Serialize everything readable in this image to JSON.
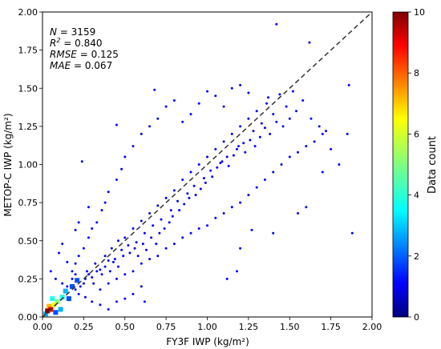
{
  "chart_data": {
    "type": "scatter",
    "xlabel": "FY3F IWP (kg/m²)",
    "ylabel": "METOP-C IWP (kg/m²)",
    "xlim": [
      0,
      2
    ],
    "ylim": [
      0,
      2
    ],
    "x_ticks": [
      "0.00",
      "0.25",
      "0.50",
      "0.75",
      "1.00",
      "1.25",
      "1.50",
      "1.75",
      "2.00"
    ],
    "y_ticks": [
      "0.00",
      "0.25",
      "0.50",
      "0.75",
      "1.00",
      "1.25",
      "1.50",
      "1.75",
      "2.00"
    ],
    "reference_line": {
      "style": "dashed",
      "color": "#333333",
      "from": [
        0,
        0
      ],
      "to": [
        2,
        2
      ]
    },
    "point_color": "#0000ff",
    "stats": {
      "n_label": "N",
      "n_value": "3159",
      "r2_label": "R",
      "r2_sup": "2",
      "r2_value": "0.840",
      "rmse_label": "RMSE",
      "rmse_value": "0.125",
      "mae_label": "MAE",
      "mae_value": "0.067"
    },
    "colorbar": {
      "label": "Data count",
      "range": [
        0,
        10
      ],
      "ticks": [
        "0",
        "2",
        "4",
        "6",
        "8",
        "10"
      ],
      "colormap": "jet"
    },
    "dense_cells": [
      {
        "x": 0.03,
        "y": 0.04,
        "count": 10
      },
      {
        "x": 0.05,
        "y": 0.05,
        "count": 9
      },
      {
        "x": 0.04,
        "y": 0.07,
        "count": 7
      },
      {
        "x": 0.07,
        "y": 0.08,
        "count": 6
      },
      {
        "x": 0.09,
        "y": 0.1,
        "count": 5
      },
      {
        "x": 0.06,
        "y": 0.12,
        "count": 4
      },
      {
        "x": 0.12,
        "y": 0.13,
        "count": 4
      },
      {
        "x": 0.02,
        "y": 0.02,
        "count": 3
      },
      {
        "x": 0.14,
        "y": 0.17,
        "count": 3
      },
      {
        "x": 0.11,
        "y": 0.05,
        "count": 3
      },
      {
        "x": 0.18,
        "y": 0.2,
        "count": 2
      },
      {
        "x": 0.08,
        "y": 0.03,
        "count": 2
      },
      {
        "x": 0.21,
        "y": 0.24,
        "count": 2
      },
      {
        "x": 0.16,
        "y": 0.12,
        "count": 2
      }
    ],
    "points": [
      [
        0.25,
        0.22
      ],
      [
        0.27,
        0.3
      ],
      [
        0.3,
        0.26
      ],
      [
        0.32,
        0.35
      ],
      [
        0.35,
        0.31
      ],
      [
        0.38,
        0.4
      ],
      [
        0.4,
        0.37
      ],
      [
        0.42,
        0.45
      ],
      [
        0.44,
        0.38
      ],
      [
        0.46,
        0.5
      ],
      [
        0.48,
        0.44
      ],
      [
        0.5,
        0.52
      ],
      [
        0.52,
        0.47
      ],
      [
        0.55,
        0.58
      ],
      [
        0.57,
        0.49
      ],
      [
        0.6,
        0.63
      ],
      [
        0.62,
        0.55
      ],
      [
        0.65,
        0.68
      ],
      [
        0.67,
        0.6
      ],
      [
        0.7,
        0.73
      ],
      [
        0.72,
        0.64
      ],
      [
        0.75,
        0.78
      ],
      [
        0.78,
        0.7
      ],
      [
        0.8,
        0.83
      ],
      [
        0.82,
        0.76
      ],
      [
        0.85,
        0.9
      ],
      [
        0.88,
        0.81
      ],
      [
        0.9,
        0.95
      ],
      [
        0.92,
        0.86
      ],
      [
        0.95,
        1.0
      ],
      [
        0.98,
        0.91
      ],
      [
        1.0,
        1.05
      ],
      [
        1.02,
        0.96
      ],
      [
        1.05,
        1.1
      ],
      [
        1.08,
        1.01
      ],
      [
        1.1,
        1.15
      ],
      [
        1.12,
        1.05
      ],
      [
        1.15,
        1.2
      ],
      [
        1.18,
        1.1
      ],
      [
        1.2,
        1.25
      ],
      [
        1.22,
        1.14
      ],
      [
        1.25,
        1.3
      ],
      [
        1.28,
        1.22
      ],
      [
        1.3,
        1.35
      ],
      [
        1.33,
        1.27
      ],
      [
        1.36,
        1.4
      ],
      [
        1.4,
        1.33
      ],
      [
        1.44,
        1.46
      ],
      [
        1.48,
        1.38
      ],
      [
        1.52,
        1.48
      ],
      [
        0.2,
        0.35
      ],
      [
        0.22,
        0.4
      ],
      [
        0.25,
        0.45
      ],
      [
        0.28,
        0.52
      ],
      [
        0.3,
        0.58
      ],
      [
        0.33,
        0.62
      ],
      [
        0.36,
        0.7
      ],
      [
        0.38,
        0.75
      ],
      [
        0.4,
        0.82
      ],
      [
        0.45,
        0.9
      ],
      [
        0.48,
        0.97
      ],
      [
        0.5,
        1.05
      ],
      [
        0.55,
        1.12
      ],
      [
        0.6,
        1.2
      ],
      [
        0.65,
        1.25
      ],
      [
        0.7,
        1.3
      ],
      [
        0.75,
        1.38
      ],
      [
        0.8,
        1.42
      ],
      [
        0.85,
        1.28
      ],
      [
        0.9,
        1.33
      ],
      [
        0.95,
        1.4
      ],
      [
        1.0,
        1.48
      ],
      [
        1.05,
        1.45
      ],
      [
        1.1,
        1.38
      ],
      [
        1.15,
        1.5
      ],
      [
        1.2,
        1.52
      ],
      [
        1.25,
        1.47
      ],
      [
        0.35,
        0.18
      ],
      [
        0.4,
        0.22
      ],
      [
        0.45,
        0.25
      ],
      [
        0.5,
        0.28
      ],
      [
        0.55,
        0.3
      ],
      [
        0.6,
        0.35
      ],
      [
        0.65,
        0.38
      ],
      [
        0.7,
        0.4
      ],
      [
        0.75,
        0.45
      ],
      [
        0.8,
        0.48
      ],
      [
        0.85,
        0.52
      ],
      [
        0.9,
        0.55
      ],
      [
        0.95,
        0.58
      ],
      [
        1.0,
        0.6
      ],
      [
        1.05,
        0.65
      ],
      [
        1.1,
        0.68
      ],
      [
        1.15,
        0.72
      ],
      [
        1.2,
        0.75
      ],
      [
        1.25,
        0.8
      ],
      [
        1.3,
        0.85
      ],
      [
        1.35,
        0.9
      ],
      [
        1.4,
        0.95
      ],
      [
        1.45,
        1.0
      ],
      [
        1.5,
        1.05
      ],
      [
        1.55,
        1.08
      ],
      [
        1.6,
        1.12
      ],
      [
        1.65,
        1.15
      ],
      [
        1.7,
        1.2
      ],
      [
        1.12,
        0.25
      ],
      [
        1.18,
        0.3
      ],
      [
        1.2,
        0.45
      ],
      [
        1.27,
        0.57
      ],
      [
        1.4,
        0.55
      ],
      [
        1.55,
        0.68
      ],
      [
        1.6,
        0.72
      ],
      [
        1.37,
        1.44
      ],
      [
        1.42,
        1.92
      ],
      [
        1.62,
        1.8
      ],
      [
        1.72,
        1.22
      ],
      [
        1.75,
        1.1
      ],
      [
        1.8,
        1.0
      ],
      [
        1.85,
        1.2
      ],
      [
        1.86,
        1.52
      ],
      [
        1.88,
        0.55
      ],
      [
        1.7,
        0.95
      ],
      [
        0.68,
        1.49
      ],
      [
        0.45,
        1.26
      ],
      [
        0.24,
        1.02
      ],
      [
        0.2,
        0.57
      ],
      [
        0.22,
        0.62
      ],
      [
        0.28,
        0.72
      ],
      [
        0.1,
        0.42
      ],
      [
        0.12,
        0.48
      ],
      [
        0.15,
        0.36
      ],
      [
        0.18,
        0.3
      ],
      [
        0.05,
        0.3
      ],
      [
        0.08,
        0.25
      ],
      [
        0.12,
        0.22
      ],
      [
        0.15,
        0.2
      ],
      [
        0.2,
        0.18
      ],
      [
        0.22,
        0.15
      ],
      [
        0.26,
        0.13
      ],
      [
        0.3,
        0.1
      ],
      [
        0.35,
        0.08
      ],
      [
        0.4,
        0.05
      ],
      [
        0.45,
        0.1
      ],
      [
        0.5,
        0.12
      ],
      [
        0.55,
        0.15
      ],
      [
        0.6,
        0.2
      ],
      [
        0.62,
        0.1
      ],
      [
        0.18,
        0.25
      ],
      [
        0.2,
        0.28
      ],
      [
        0.23,
        0.2
      ],
      [
        0.26,
        0.25
      ],
      [
        0.28,
        0.28
      ],
      [
        0.31,
        0.22
      ],
      [
        0.33,
        0.3
      ],
      [
        0.36,
        0.28
      ],
      [
        0.38,
        0.33
      ],
      [
        0.41,
        0.3
      ],
      [
        0.43,
        0.36
      ],
      [
        0.46,
        0.33
      ],
      [
        0.49,
        0.4
      ],
      [
        0.53,
        0.42
      ],
      [
        0.56,
        0.45
      ],
      [
        0.58,
        0.4
      ],
      [
        0.61,
        0.48
      ],
      [
        0.63,
        0.44
      ],
      [
        0.66,
        0.52
      ],
      [
        0.69,
        0.48
      ],
      [
        0.71,
        0.55
      ],
      [
        0.74,
        0.58
      ],
      [
        0.77,
        0.62
      ],
      [
        0.79,
        0.66
      ],
      [
        0.83,
        0.7
      ],
      [
        0.86,
        0.74
      ],
      [
        0.89,
        0.78
      ],
      [
        0.93,
        0.8
      ],
      [
        0.96,
        0.84
      ],
      [
        0.99,
        0.88
      ],
      [
        1.03,
        0.92
      ],
      [
        1.06,
        0.98
      ],
      [
        1.09,
        1.02
      ],
      [
        1.13,
        0.99
      ],
      [
        1.16,
        1.06
      ],
      [
        1.19,
        1.12
      ],
      [
        1.23,
        1.08
      ],
      [
        1.26,
        1.16
      ],
      [
        1.29,
        1.12
      ],
      [
        1.32,
        1.18
      ],
      [
        1.35,
        1.24
      ],
      [
        1.38,
        1.2
      ],
      [
        1.42,
        1.28
      ],
      [
        1.46,
        1.25
      ],
      [
        1.5,
        1.3
      ],
      [
        1.54,
        1.35
      ],
      [
        1.58,
        1.42
      ],
      [
        1.63,
        1.3
      ],
      [
        1.68,
        1.25
      ]
    ]
  }
}
